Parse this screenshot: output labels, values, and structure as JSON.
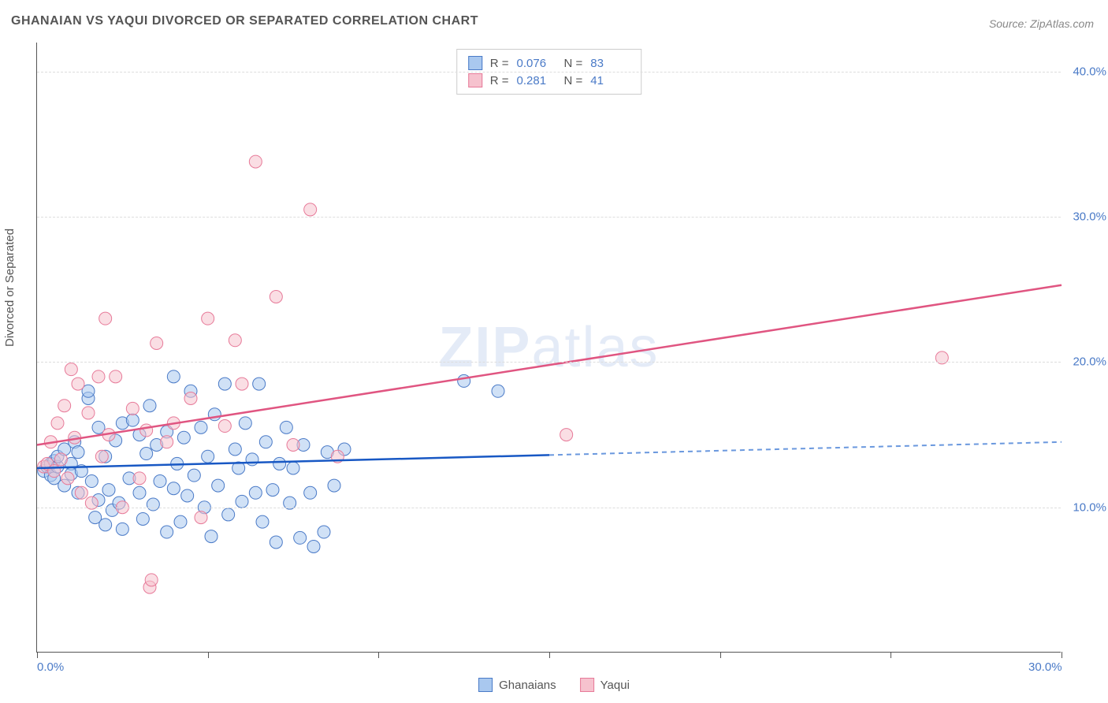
{
  "title": "GHANAIAN VS YAQUI DIVORCED OR SEPARATED CORRELATION CHART",
  "source": "Source: ZipAtlas.com",
  "watermark_a": "ZIP",
  "watermark_b": "atlas",
  "yaxis_title": "Divorced or Separated",
  "chart": {
    "type": "scatter",
    "background_color": "#ffffff",
    "grid_color": "#dddddd",
    "axis_color": "#555555",
    "tick_label_color": "#4a7ac7",
    "tick_label_fontsize": 15,
    "xlim": [
      0,
      30
    ],
    "ylim": [
      0,
      42
    ],
    "xticks": [
      0,
      5,
      10,
      15,
      20,
      25,
      30
    ],
    "xtick_labels": {
      "0": "0.0%",
      "30": "30.0%"
    },
    "yticks": [
      10,
      20,
      30,
      40
    ],
    "ytick_labels": [
      "10.0%",
      "20.0%",
      "30.0%",
      "40.0%"
    ],
    "marker_radius": 8,
    "marker_opacity": 0.55,
    "series": [
      {
        "name": "Ghanaians",
        "color_fill": "#a9c8ef",
        "color_stroke": "#4a7ac7",
        "R": "0.076",
        "N": "83",
        "trend": {
          "x1": 0,
          "y1": 12.7,
          "x2": 15,
          "y2": 13.6,
          "color": "#1858c4",
          "width": 2.5
        },
        "trend_dash": {
          "x1": 15,
          "y1": 13.6,
          "x2": 30,
          "y2": 14.5,
          "color": "#6a98de"
        },
        "points": [
          [
            0.2,
            12.5
          ],
          [
            0.3,
            12.8
          ],
          [
            0.4,
            13.0
          ],
          [
            0.4,
            12.2
          ],
          [
            0.5,
            13.2
          ],
          [
            0.5,
            12.0
          ],
          [
            0.6,
            12.8
          ],
          [
            0.6,
            13.5
          ],
          [
            0.8,
            14.0
          ],
          [
            0.8,
            11.5
          ],
          [
            1.0,
            13.0
          ],
          [
            1.0,
            12.3
          ],
          [
            1.1,
            14.5
          ],
          [
            1.2,
            11.0
          ],
          [
            1.2,
            13.8
          ],
          [
            1.3,
            12.5
          ],
          [
            1.5,
            17.5
          ],
          [
            1.5,
            18.0
          ],
          [
            1.6,
            11.8
          ],
          [
            1.7,
            9.3
          ],
          [
            1.8,
            15.5
          ],
          [
            1.8,
            10.5
          ],
          [
            2.0,
            8.8
          ],
          [
            2.0,
            13.5
          ],
          [
            2.1,
            11.2
          ],
          [
            2.2,
            9.8
          ],
          [
            2.3,
            14.6
          ],
          [
            2.4,
            10.3
          ],
          [
            2.5,
            15.8
          ],
          [
            2.5,
            8.5
          ],
          [
            2.7,
            12.0
          ],
          [
            2.8,
            16.0
          ],
          [
            3.0,
            11.0
          ],
          [
            3.0,
            15.0
          ],
          [
            3.1,
            9.2
          ],
          [
            3.2,
            13.7
          ],
          [
            3.3,
            17.0
          ],
          [
            3.4,
            10.2
          ],
          [
            3.5,
            14.3
          ],
          [
            3.6,
            11.8
          ],
          [
            3.8,
            8.3
          ],
          [
            3.8,
            15.2
          ],
          [
            4.0,
            19.0
          ],
          [
            4.0,
            11.3
          ],
          [
            4.1,
            13.0
          ],
          [
            4.2,
            9.0
          ],
          [
            4.3,
            14.8
          ],
          [
            4.4,
            10.8
          ],
          [
            4.5,
            18.0
          ],
          [
            4.6,
            12.2
          ],
          [
            4.8,
            15.5
          ],
          [
            4.9,
            10.0
          ],
          [
            5.0,
            13.5
          ],
          [
            5.1,
            8.0
          ],
          [
            5.2,
            16.4
          ],
          [
            5.3,
            11.5
          ],
          [
            5.5,
            18.5
          ],
          [
            5.6,
            9.5
          ],
          [
            5.8,
            14.0
          ],
          [
            5.9,
            12.7
          ],
          [
            6.0,
            10.4
          ],
          [
            6.1,
            15.8
          ],
          [
            6.3,
            13.3
          ],
          [
            6.4,
            11.0
          ],
          [
            6.5,
            18.5
          ],
          [
            6.6,
            9.0
          ],
          [
            6.7,
            14.5
          ],
          [
            6.9,
            11.2
          ],
          [
            7.0,
            7.6
          ],
          [
            7.1,
            13.0
          ],
          [
            7.3,
            15.5
          ],
          [
            7.4,
            10.3
          ],
          [
            7.5,
            12.7
          ],
          [
            7.7,
            7.9
          ],
          [
            7.8,
            14.3
          ],
          [
            8.0,
            11.0
          ],
          [
            8.1,
            7.3
          ],
          [
            8.4,
            8.3
          ],
          [
            8.5,
            13.8
          ],
          [
            8.7,
            11.5
          ],
          [
            9.0,
            14.0
          ],
          [
            12.5,
            18.7
          ],
          [
            13.5,
            18.0
          ]
        ]
      },
      {
        "name": "Yaqui",
        "color_fill": "#f6c2ce",
        "color_stroke": "#e77a99",
        "R": "0.281",
        "N": "41",
        "trend": {
          "x1": 0,
          "y1": 14.3,
          "x2": 30,
          "y2": 25.3,
          "color": "#e05581",
          "width": 2.5
        },
        "points": [
          [
            0.2,
            12.8
          ],
          [
            0.3,
            13.0
          ],
          [
            0.4,
            14.5
          ],
          [
            0.5,
            12.5
          ],
          [
            0.6,
            15.8
          ],
          [
            0.7,
            13.3
          ],
          [
            0.8,
            17.0
          ],
          [
            0.9,
            12.0
          ],
          [
            1.0,
            19.5
          ],
          [
            1.1,
            14.8
          ],
          [
            1.2,
            18.5
          ],
          [
            1.3,
            11.0
          ],
          [
            1.5,
            16.5
          ],
          [
            1.6,
            10.3
          ],
          [
            1.8,
            19.0
          ],
          [
            1.9,
            13.5
          ],
          [
            2.0,
            23.0
          ],
          [
            2.1,
            15.0
          ],
          [
            2.3,
            19.0
          ],
          [
            2.5,
            10.0
          ],
          [
            2.8,
            16.8
          ],
          [
            3.0,
            12.0
          ],
          [
            3.2,
            15.3
          ],
          [
            3.3,
            4.5
          ],
          [
            3.35,
            5.0
          ],
          [
            3.5,
            21.3
          ],
          [
            3.8,
            14.5
          ],
          [
            4.0,
            15.8
          ],
          [
            4.5,
            17.5
          ],
          [
            4.8,
            9.3
          ],
          [
            5.0,
            23.0
          ],
          [
            5.5,
            15.6
          ],
          [
            5.8,
            21.5
          ],
          [
            6.0,
            18.5
          ],
          [
            6.4,
            33.8
          ],
          [
            7.0,
            24.5
          ],
          [
            7.5,
            14.3
          ],
          [
            8.0,
            30.5
          ],
          [
            8.8,
            13.5
          ],
          [
            15.5,
            15.0
          ],
          [
            26.5,
            20.3
          ]
        ]
      }
    ]
  },
  "legend_bottom": [
    {
      "label": "Ghanaians",
      "fill": "#a9c8ef",
      "stroke": "#4a7ac7"
    },
    {
      "label": "Yaqui",
      "fill": "#f6c2ce",
      "stroke": "#e77a99"
    }
  ]
}
